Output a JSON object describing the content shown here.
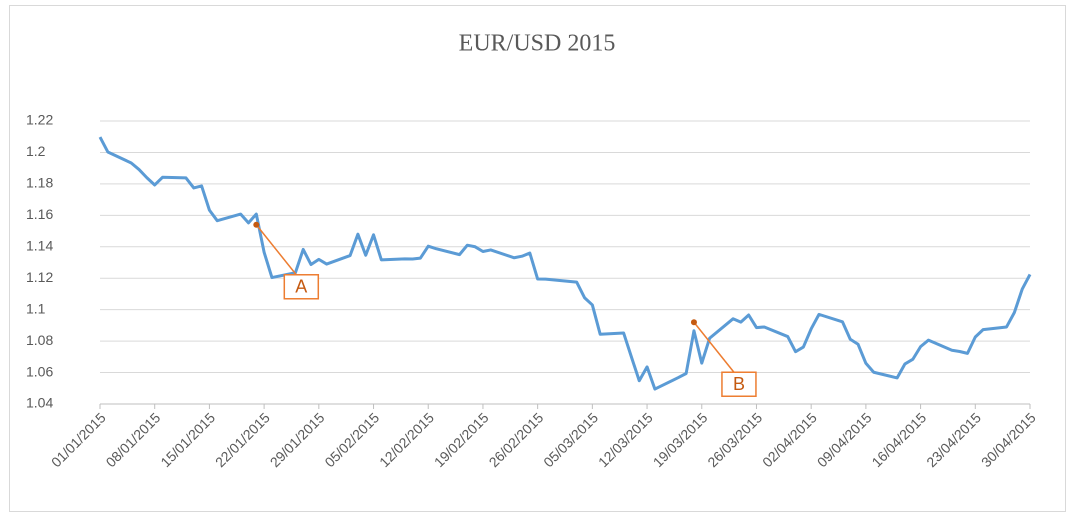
{
  "chart_data": {
    "type": "line",
    "title": "EUR/USD 2015",
    "x": [
      "01/01/2015",
      "02/01/2015",
      "05/01/2015",
      "06/01/2015",
      "07/01/2015",
      "08/01/2015",
      "09/01/2015",
      "12/01/2015",
      "13/01/2015",
      "14/01/2015",
      "15/01/2015",
      "16/01/2015",
      "19/01/2015",
      "20/01/2015",
      "21/01/2015",
      "22/01/2015",
      "23/01/2015",
      "26/01/2015",
      "27/01/2015",
      "28/01/2015",
      "29/01/2015",
      "30/01/2015",
      "02/02/2015",
      "03/02/2015",
      "04/02/2015",
      "05/02/2015",
      "06/02/2015",
      "09/02/2015",
      "10/02/2015",
      "11/02/2015",
      "12/02/2015",
      "13/02/2015",
      "16/02/2015",
      "17/02/2015",
      "18/02/2015",
      "19/02/2015",
      "20/02/2015",
      "23/02/2015",
      "24/02/2015",
      "25/02/2015",
      "26/02/2015",
      "27/02/2015",
      "02/03/2015",
      "03/03/2015",
      "04/03/2015",
      "05/03/2015",
      "06/03/2015",
      "09/03/2015",
      "10/03/2015",
      "11/03/2015",
      "12/03/2015",
      "13/03/2015",
      "16/03/2015",
      "17/03/2015",
      "18/03/2015",
      "19/03/2015",
      "20/03/2015",
      "23/03/2015",
      "24/03/2015",
      "25/03/2015",
      "26/03/2015",
      "27/03/2015",
      "30/03/2015",
      "31/03/2015",
      "01/04/2015",
      "02/04/2015",
      "03/04/2015",
      "06/04/2015",
      "07/04/2015",
      "08/04/2015",
      "09/04/2015",
      "10/04/2015",
      "13/04/2015",
      "14/04/2015",
      "15/04/2015",
      "16/04/2015",
      "17/04/2015",
      "20/04/2015",
      "21/04/2015",
      "22/04/2015",
      "23/04/2015",
      "24/04/2015",
      "27/04/2015",
      "28/04/2015",
      "29/04/2015",
      "30/04/2015"
    ],
    "series": [
      {
        "name": "EUR/USD",
        "color": "#5b9bd5",
        "values": [
          1.2098,
          1.2003,
          1.1933,
          1.1891,
          1.1839,
          1.1793,
          1.1842,
          1.1838,
          1.1774,
          1.1787,
          1.1633,
          1.1566,
          1.1608,
          1.1552,
          1.1608,
          1.1365,
          1.1204,
          1.1235,
          1.1383,
          1.1287,
          1.132,
          1.129,
          1.1344,
          1.148,
          1.1346,
          1.1476,
          1.1317,
          1.1323,
          1.1322,
          1.1328,
          1.1404,
          1.1388,
          1.135,
          1.141,
          1.14,
          1.137,
          1.138,
          1.133,
          1.134,
          1.136,
          1.1195,
          1.1194,
          1.118,
          1.1175,
          1.1076,
          1.103,
          1.0844,
          1.0852,
          1.0699,
          1.0548,
          1.0636,
          1.0495,
          1.0568,
          1.0594,
          1.0866,
          1.066,
          1.0818,
          1.0942,
          1.0921,
          1.0966,
          1.0886,
          1.089,
          1.0829,
          1.0733,
          1.0762,
          1.0878,
          1.097,
          1.0923,
          1.0812,
          1.078,
          1.0659,
          1.0602,
          1.0566,
          1.0655,
          1.0684,
          1.0765,
          1.0806,
          1.0742,
          1.0734,
          1.0722,
          1.0826,
          1.0873,
          1.089,
          1.0982,
          1.113,
          1.1224
        ]
      }
    ],
    "xlim": [
      "01/01/2015",
      "30/04/2015"
    ],
    "xticks": [
      "01/01/2015",
      "08/01/2015",
      "15/01/2015",
      "22/01/2015",
      "29/01/2015",
      "05/02/2015",
      "12/02/2015",
      "19/02/2015",
      "26/02/2015",
      "05/03/2015",
      "12/03/2015",
      "19/03/2015",
      "26/03/2015",
      "02/04/2015",
      "09/04/2015",
      "16/04/2015",
      "23/04/2015",
      "30/04/2015"
    ],
    "ylim": [
      1.04,
      1.22
    ],
    "yticks": [
      1.04,
      1.06,
      1.08,
      1.1,
      1.12,
      1.14,
      1.16,
      1.18,
      1.2,
      1.22
    ],
    "grid": true,
    "annotations": [
      {
        "text": "A",
        "x": "21/01/2015",
        "y": 1.154
      },
      {
        "text": "B",
        "x": "18/03/2015",
        "y": 1.092
      }
    ]
  }
}
